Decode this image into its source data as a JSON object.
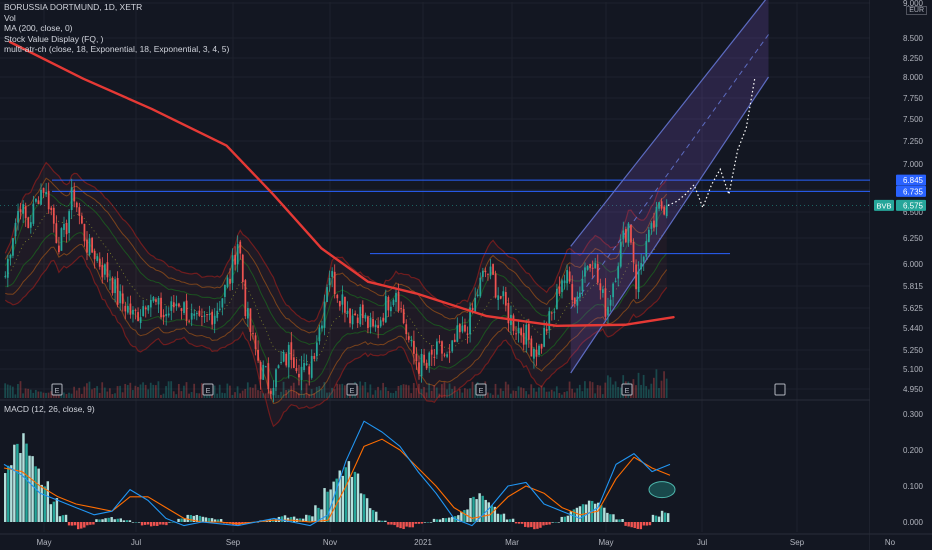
{
  "header": {
    "symbol_line": "BORUSSIA DORTMUND, 1D, XETR",
    "indicators": [
      "Vol",
      "MA (200, close, 0)",
      "Stock Value Display (FQ, )",
      "multi-atr-ch (close, 18, Exponential, 18, Exponential, 3, 4, 5)"
    ],
    "currency": "EUR"
  },
  "macd_panel": {
    "title": "MACD (12, 26, close, 9)"
  },
  "colors": {
    "background": "#131722",
    "up": "#26a69a",
    "down": "#ef5350",
    "ma": "#e53935",
    "channel": "#5c6bc0",
    "level": "#2962ff",
    "macd": "#2196f3",
    "signal": "#ff6d00"
  },
  "chart_data": [
    {
      "type": "candlestick",
      "title": "BORUSSIA DORTMUND, 1D, XETR",
      "ylim": [
        4.9,
        9.0
      ],
      "y_ticks": [
        "9.000",
        "8.500",
        "8.250",
        "8.000",
        "7.750",
        "7.500",
        "7.250",
        "7.000",
        "6.750",
        "6.500",
        "6.250",
        "6.000",
        "5.815",
        "5.625",
        "5.440",
        "5.250",
        "5.100",
        "4.950"
      ],
      "x_labels": [
        "May",
        "Jul",
        "Sep",
        "Nov",
        "2021",
        "Mar",
        "May",
        "Jul",
        "Sep",
        "No"
      ],
      "close_path": [
        5.9,
        6.3,
        6.6,
        6.35,
        6.6,
        6.8,
        6.55,
        6.2,
        6.3,
        6.75,
        6.4,
        6.15,
        6.1,
        5.95,
        5.9,
        5.7,
        5.65,
        5.55,
        5.6,
        5.75,
        5.65,
        5.55,
        5.6,
        5.7,
        5.6,
        5.5,
        5.45,
        5.55,
        5.6,
        5.75,
        5.9,
        6.25,
        5.6,
        5.3,
        5.1,
        5.0,
        5.05,
        5.15,
        5.25,
        5.15,
        5.05,
        5.25,
        5.5,
        5.95,
        5.8,
        5.7,
        5.55,
        5.6,
        5.5,
        5.4,
        5.55,
        5.7,
        5.8,
        5.5,
        5.25,
        5.15,
        5.1,
        5.2,
        5.25,
        5.15,
        5.35,
        5.4,
        5.55,
        5.8,
        5.95,
        5.85,
        5.7,
        5.55,
        5.45,
        5.4,
        5.3,
        5.25,
        5.45,
        5.6,
        5.9,
        5.85,
        5.7,
        5.95,
        6.1,
        5.8,
        5.6,
        5.9,
        6.2,
        6.4,
        5.8,
        6.15,
        6.3,
        6.55,
        6.575
      ],
      "ma200": [
        {
          "date": "2020-04-15",
          "value": 8.45
        },
        {
          "date": "2020-06-01",
          "value": 7.98
        },
        {
          "date": "2020-07-15",
          "value": 7.62
        },
        {
          "date": "2020-09-01",
          "value": 7.2
        },
        {
          "date": "2020-10-01",
          "value": 6.7
        },
        {
          "date": "2020-11-01",
          "value": 6.15
        },
        {
          "date": "2020-12-01",
          "value": 5.85
        },
        {
          "date": "2021-01-01",
          "value": 5.75
        },
        {
          "date": "2021-02-15",
          "value": 5.55
        },
        {
          "date": "2021-04-01",
          "value": 5.46
        },
        {
          "date": "2021-05-15",
          "value": 5.47
        },
        {
          "date": "2021-06-15",
          "value": 5.54
        }
      ],
      "horizontal_levels": [
        {
          "value": 6.845,
          "label": "6.845"
        },
        {
          "value": 6.735,
          "label": "6.735"
        },
        {
          "value": 6.1,
          "label": ""
        }
      ],
      "last_price": {
        "symbol": "BVB",
        "value": "6.575"
      },
      "regression_channel": {
        "start": {
          "date": "2021-04-10",
          "mid": 5.62
        },
        "end": {
          "date": "2021-08-15",
          "mid": 8.55
        },
        "width": 0.55
      },
      "projection_path": [
        6.575,
        6.62,
        6.7,
        6.8,
        6.55,
        6.8,
        6.95,
        6.7,
        7.15,
        7.4,
        8.0
      ]
    },
    {
      "type": "bar+line",
      "title": "MACD (12, 26, close, 9)",
      "ylim": [
        -0.01,
        0.3
      ],
      "y_ticks": [
        "0.300",
        "0.200",
        "0.100",
        "0.000"
      ],
      "series": [
        {
          "name": "Histogram",
          "values": [
            0.16,
            0.22,
            0.25,
            0.21,
            0.14,
            0.07,
            0.02,
            -0.01,
            -0.02,
            -0.01,
            0.01,
            0.015,
            0.01,
            0.005,
            0.0,
            -0.01,
            -0.015,
            -0.01,
            0.0,
            0.01,
            0.02,
            0.02,
            0.015,
            0.01,
            -0.005,
            -0.01,
            -0.005,
            0.0,
            0.005,
            0.01,
            0.02,
            0.015,
            0.01,
            0.02,
            0.05,
            0.12,
            0.16,
            0.17,
            0.14,
            0.08,
            0.04,
            0.005,
            -0.01,
            -0.02,
            -0.015,
            -0.005,
            0.0,
            0.01,
            0.015,
            0.02,
            0.035,
            0.07,
            0.08,
            0.06,
            0.03,
            0.01,
            -0.005,
            -0.015,
            -0.02,
            -0.01,
            0.0,
            0.02,
            0.04,
            0.05,
            0.06,
            0.055,
            0.03,
            0.01,
            -0.015,
            -0.02,
            -0.01,
            0.02,
            0.035
          ]
        },
        {
          "name": "MACD",
          "values": [
            0.16,
            0.13,
            0.08,
            0.06,
            0.04,
            0.02,
            0.03,
            0.09,
            0.06,
            0.01,
            -0.01,
            0.0,
            -0.005,
            -0.01,
            0.0,
            0.01,
            0.0,
            -0.01,
            0.02,
            0.17,
            0.28,
            0.25,
            0.21,
            0.14,
            0.08,
            0.01,
            -0.01,
            0.04,
            0.1,
            0.11,
            0.05,
            0.03,
            0.01,
            0.04,
            0.16,
            0.19,
            0.14,
            0.16
          ]
        },
        {
          "name": "Signal",
          "values": [
            0.15,
            0.14,
            0.1,
            0.07,
            0.05,
            0.04,
            0.03,
            0.07,
            0.07,
            0.04,
            0.01,
            0.0,
            0.0,
            -0.005,
            0.0,
            0.005,
            0.005,
            0.0,
            0.005,
            0.1,
            0.21,
            0.23,
            0.2,
            0.15,
            0.1,
            0.04,
            0.01,
            0.02,
            0.07,
            0.1,
            0.08,
            0.04,
            0.02,
            0.03,
            0.12,
            0.18,
            0.15,
            0.13
          ]
        }
      ]
    }
  ]
}
